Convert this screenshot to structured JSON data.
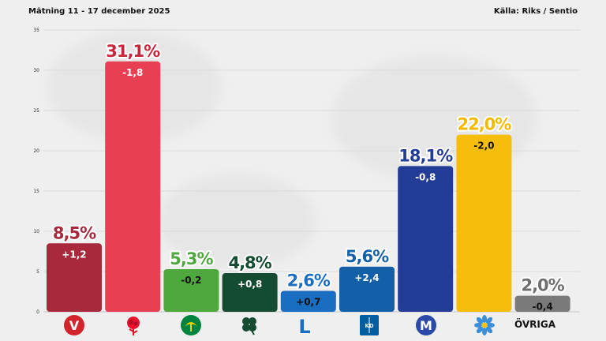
{
  "header": {
    "left": "Mätning  11 - 17 december 2025",
    "right": "Källa: Riks / Sentio"
  },
  "chart_data": {
    "type": "bar",
    "ylim": [
      0,
      35
    ],
    "yticks": [
      0,
      5,
      10,
      15,
      20,
      25,
      30,
      35
    ],
    "grid": true,
    "categories": [
      "V",
      "S",
      "C",
      "C2",
      "L",
      "KD",
      "M",
      "SD",
      "ÖVRIGA"
    ],
    "values": [
      8.5,
      31.1,
      5.3,
      4.8,
      2.6,
      5.6,
      18.1,
      22.0,
      2.0
    ],
    "value_labels": [
      "8,5%",
      "31,1%",
      "5,3%",
      "4,8%",
      "2,6%",
      "5,6%",
      "18,1%",
      "22,0%",
      "2,0%"
    ],
    "change_labels": [
      "+1,2",
      "-1,8",
      "-0,2",
      "+0,8",
      "+0,7",
      "+2,4",
      "-0,8",
      "-2,0",
      "-0,4"
    ],
    "colors": [
      "#a8283c",
      "#e83f52",
      "#4fa83e",
      "#134b33",
      "#1a6ec2",
      "#1460a8",
      "#233c96",
      "#f6bd0c",
      "#7a7a7a"
    ],
    "label_colors": [
      "#a8283c",
      "#c8243a",
      "#4fa83e",
      "#134b33",
      "#1a6ec2",
      "#1460a8",
      "#233c96",
      "#f2b900",
      "#6e6e6e"
    ],
    "change_colors": [
      "#ffffff",
      "#ffffff",
      "#111111",
      "#ffffff",
      "#111111",
      "#ffffff",
      "#ffffff",
      "#111111",
      "#111111"
    ]
  },
  "logos": {
    "v": "V",
    "s_icon": "rose-icon",
    "c_icon": "clover-leaf-green-icon",
    "c2_icon": "four-leaf-clover-icon",
    "l": "L",
    "kd": "KD",
    "m": "M",
    "sd_icon": "blue-flower-icon",
    "ovriga": "ÖVRIGA"
  }
}
